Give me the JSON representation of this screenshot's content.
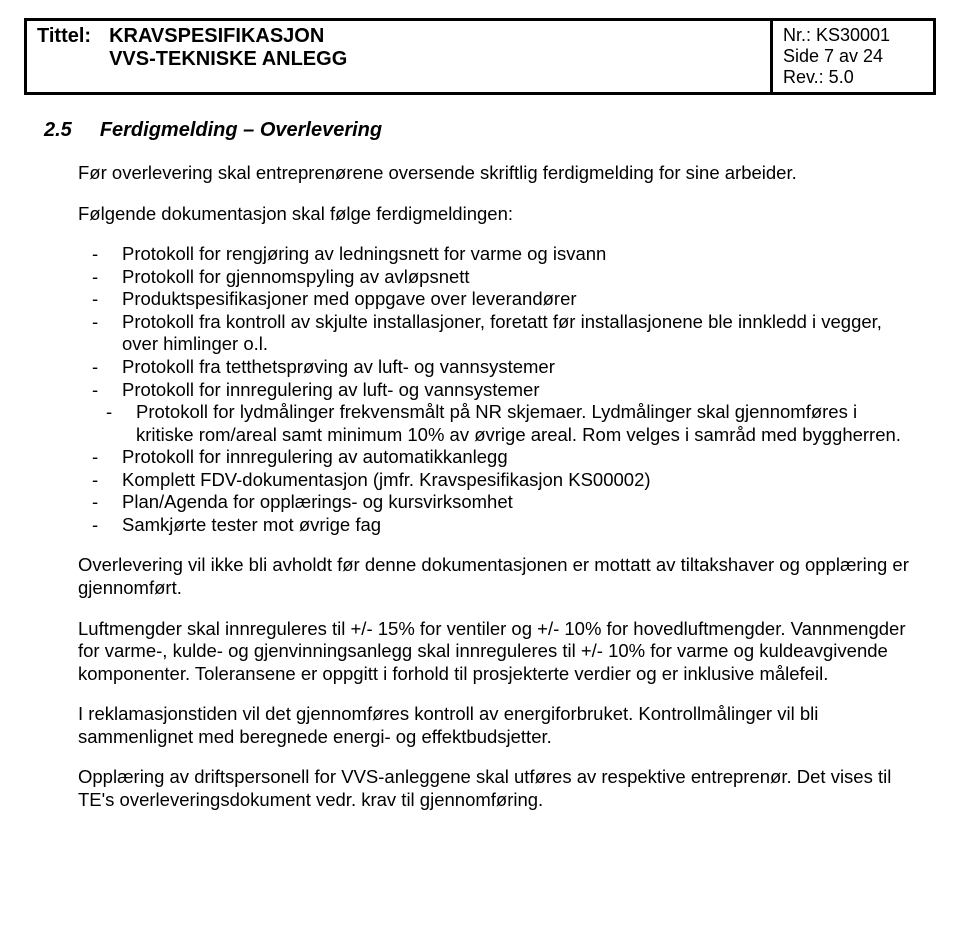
{
  "header": {
    "label": "Tittel:",
    "title_line1": "KRAVSPESIFIKASJON",
    "title_line2": "VVS-TEKNISKE ANLEGG",
    "nr": "Nr.: KS30001",
    "side": "Side 7 av 24",
    "rev": "Rev.: 5.0"
  },
  "section": {
    "number": "2.5",
    "title": "Ferdigmelding – Overlevering"
  },
  "intro": "Før overlevering skal entreprenørene oversende skriftlig ferdigmelding for sine arbeider.",
  "list_intro": "Følgende dokumentasjon skal følge ferdigmeldingen:",
  "bullets": [
    "Protokoll for rengjøring av ledningsnett for varme og isvann",
    "Protokoll for gjennomspyling av avløpsnett",
    "Produktspesifikasjoner med oppgave over leverandører",
    "Protokoll fra kontroll av skjulte installasjoner, foretatt før installasjonene ble innkledd i vegger, over himlinger o.l.",
    "Protokoll fra tetthetsprøving av luft- og vannsystemer",
    "Protokoll for innregulering av luft- og vannsystemer"
  ],
  "bullets2": [
    "Protokoll for lydmålinger frekvensmålt på NR skjemaer. Lydmålinger skal gjennomføres i kritiske rom/areal samt minimum 10% av øvrige areal. Rom velges i samråd med byggherren."
  ],
  "bullets3": [
    "Protokoll for innregulering av automatikkanlegg",
    "Komplett FDV-dokumentasjon (jmfr. Kravspesifikasjon KS00002)",
    "Plan/Agenda for opplærings- og kursvirksomhet",
    "Samkjørte tester mot øvrige fag"
  ],
  "paras": [
    "Overlevering vil ikke bli avholdt før denne dokumentasjonen er mottatt av tiltakshaver og opplæring er gjennomført.",
    "Luftmengder skal innreguleres til +/- 15% for ventiler og +/- 10% for hovedluftmengder. Vannmengder for varme-, kulde- og gjenvinningsanlegg skal innreguleres til +/- 10% for varme og kuldeavgivende komponenter. Toleransene er oppgitt i forhold til prosjekterte verdier og er inklusive målefeil.",
    "I reklamasjonstiden vil det gjennomføres kontroll av energiforbruket. Kontrollmålinger vil bli sammenlignet med beregnede energi- og effektbudsjetter.",
    "Opplæring av driftspersonell for VVS-anleggene skal utføres av respektive entreprenør. Det vises til TE's overleveringsdokument vedr. krav til gjennomføring."
  ]
}
